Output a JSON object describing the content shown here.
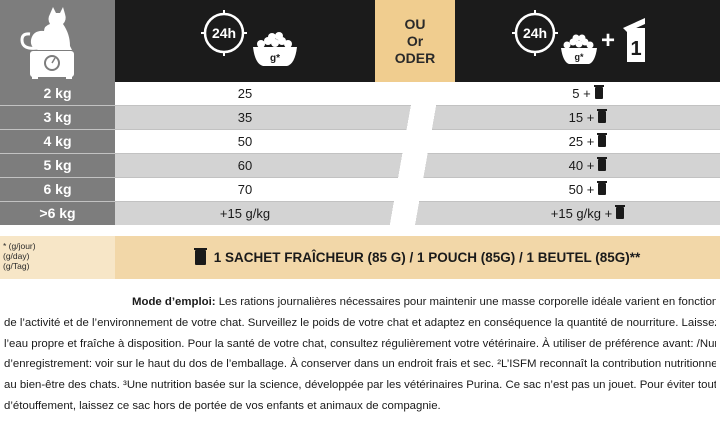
{
  "header": {
    "or_labels": [
      "OU",
      "Or",
      "ODER"
    ],
    "hours_label": "24h",
    "grams_label": "g*",
    "plus_sign": "+",
    "pouch_count": "1"
  },
  "rows": [
    {
      "weight": "2 kg",
      "dry": "25",
      "mixed": "5 +"
    },
    {
      "weight": "3 kg",
      "dry": "35",
      "mixed": "15 +"
    },
    {
      "weight": "4 kg",
      "dry": "50",
      "mixed": "25 +"
    },
    {
      "weight": "5 kg",
      "dry": "60",
      "mixed": "40 +"
    },
    {
      "weight": "6 kg",
      "dry": "70",
      "mixed": "50 +"
    },
    {
      "weight": ">6 kg",
      "dry": "+15 g/kg",
      "mixed": "+15 g/kg +"
    }
  ],
  "footer": {
    "units": [
      "* (g/jour)",
      "(g/day)",
      "(g/Tag)"
    ],
    "pouch_text": "1 SACHET FRAÎCHEUR (85 G) / 1 POUCH (85G) / 1 BEUTEL (85G)**"
  },
  "instructions": {
    "title": "Mode d’emploi:",
    "line0": " Les rations journalières nécessaires pour maintenir une masse corporelle idéale varient en fonction de l’âge,",
    "line1": "de l’activité et de l’environnement de votre chat. Surveillez le poids de votre chat et adaptez en conséquence la quantité de nourriture. Laissez toujours de",
    "line2": "l’eau propre et fraîche à disposition. Pour la santé de votre chat, consultez régulièrement votre vétérinaire. À utiliser de préférence avant: /Numéros de lot et",
    "line3": "d’enregistrement: voir sur le haut du dos de l’emballage. À conserver dans un endroit frais et sec. ²L’ISFM reconnaît la contribution nutritionnelle de PURINA",
    "line4": "au bien-être des chats. ³Une nutrition basée sur la science, développée par les vétérinaires Purina. Ce sac n’est pas un jouet. Pour éviter tout risque",
    "line5": "d’étouffement, laissez ce sac hors de portée de vos enfants et animaux de compagnie."
  }
}
